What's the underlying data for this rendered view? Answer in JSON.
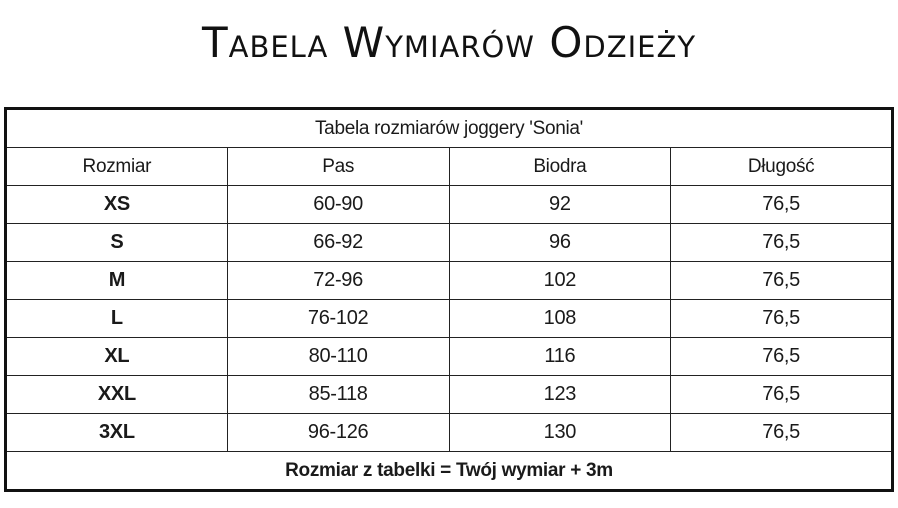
{
  "title": "Tabela Wymiarów Odzieży",
  "table": {
    "caption": "Tabela rozmiarów joggery 'Sonia'",
    "headers": [
      "Rozmiar",
      "Pas",
      "Biodra",
      "Długość"
    ],
    "rows": [
      [
        "XS",
        "60-90",
        "92",
        "76,5"
      ],
      [
        "S",
        "66-92",
        "96",
        "76,5"
      ],
      [
        "M",
        "72-96",
        "102",
        "76,5"
      ],
      [
        "L",
        "76-102",
        "108",
        "76,5"
      ],
      [
        "XL",
        "80-110",
        "116",
        "76,5"
      ],
      [
        "XXL",
        "85-118",
        "123",
        "76,5"
      ],
      [
        "3XL",
        "96-126",
        "130",
        "76,5"
      ]
    ],
    "footer": "Rozmiar z tabelki = Twój wymiar + 3m"
  }
}
